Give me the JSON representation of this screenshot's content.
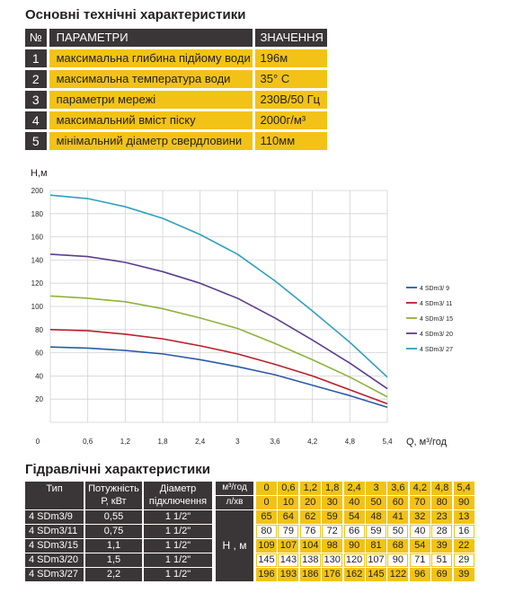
{
  "specs": {
    "title": "Основні технічні характеристики",
    "header": {
      "num": "№",
      "param": "ПАРАМЕТРИ",
      "value": "ЗНАЧЕННЯ"
    },
    "rows": [
      {
        "num": "1",
        "param": "максимальна глибина підйому води",
        "value": "196м"
      },
      {
        "num": "2",
        "param": "максимальна температура води",
        "value": "35° С"
      },
      {
        "num": "3",
        "param": "параметри мережі",
        "value": "230В/50 Гц"
      },
      {
        "num": "4",
        "param": "максимальний вміст піску",
        "value": "2000г/м³"
      },
      {
        "num": "5",
        "param": "мінімальний діаметр свердловини",
        "value": "110мм"
      }
    ]
  },
  "chart_data": {
    "type": "line",
    "ylabel": "Н,м",
    "xlabel": "Q,  м³/год",
    "xlim": [
      0,
      5.4
    ],
    "ylim": [
      0,
      200
    ],
    "x_ticks": [
      "0",
      "0,6",
      "1,2",
      "1,8",
      "2,4",
      "3",
      "3,6",
      "4,2",
      "4,8",
      "5,4"
    ],
    "y_ticks": [
      "20",
      "40",
      "60",
      "80",
      "100",
      "120",
      "140",
      "160",
      "180",
      "200"
    ],
    "y_zero_label": "0",
    "grid": true,
    "legend": "right",
    "x": [
      0,
      0.6,
      1.2,
      1.8,
      2.4,
      3,
      3.6,
      4.2,
      4.8,
      5.4
    ],
    "series": [
      {
        "name": "4 SDm3/ 9",
        "color": "#2b5aa8",
        "values": [
          65,
          64,
          62,
          59,
          54,
          48,
          41,
          32,
          23,
          13
        ]
      },
      {
        "name": "4 SDm3/ 11",
        "color": "#b8202a",
        "values": [
          80,
          79,
          76,
          72,
          66,
          59,
          50,
          40,
          28,
          16
        ]
      },
      {
        "name": "4 SDm3/ 15",
        "color": "#8fb23b",
        "values": [
          109,
          107,
          104,
          98,
          90,
          81,
          68,
          54,
          39,
          22
        ]
      },
      {
        "name": "4 SDm3/ 20",
        "color": "#5c3d8e",
        "values": [
          145,
          143,
          138,
          130,
          120,
          107,
          90,
          71,
          51,
          29
        ]
      },
      {
        "name": "4 SDm3/ 27",
        "color": "#2fa0c0",
        "values": [
          196,
          193,
          186,
          176,
          162,
          145,
          122,
          96,
          69,
          39
        ]
      }
    ]
  },
  "hydraulic": {
    "title": "Гідравлічні характеристики",
    "col_type": "Тип",
    "col_power": "Потужність\nР, кВт",
    "col_diameter": "Діаметр\nпідключення",
    "unit_q": "м³/год",
    "unit_l": "л/хв",
    "unit_h": "Н , м",
    "q_values": [
      "0",
      "0,6",
      "1,2",
      "1,8",
      "2,4",
      "3",
      "3,6",
      "4,2",
      "4,8",
      "5,4"
    ],
    "l_values": [
      "0",
      "10",
      "20",
      "30",
      "40",
      "50",
      "60",
      "70",
      "80",
      "90"
    ],
    "rows": [
      {
        "type": "4 SDm3/9",
        "power": "0,55",
        "diameter": "1 1/2\"",
        "h": [
          "65",
          "64",
          "62",
          "59",
          "54",
          "48",
          "41",
          "32",
          "23",
          "13"
        ]
      },
      {
        "type": "4 SDm3/11",
        "power": "0,75",
        "diameter": "1 1/2\"",
        "h": [
          "80",
          "79",
          "76",
          "72",
          "66",
          "59",
          "50",
          "40",
          "28",
          "16"
        ]
      },
      {
        "type": "4 SDm3/15",
        "power": "1,1",
        "diameter": "1 1/2\"",
        "h": [
          "109",
          "107",
          "104",
          "98",
          "90",
          "81",
          "68",
          "54",
          "39",
          "22"
        ]
      },
      {
        "type": "4 SDm3/20",
        "power": "1,5",
        "diameter": "1 1/2\"",
        "h": [
          "145",
          "143",
          "138",
          "130",
          "120",
          "107",
          "90",
          "71",
          "51",
          "29"
        ]
      },
      {
        "type": "4 SDm3/27",
        "power": "2,2",
        "diameter": "1 1/2\"",
        "h": [
          "196",
          "193",
          "186",
          "176",
          "162",
          "145",
          "122",
          "96",
          "69",
          "39"
        ]
      }
    ]
  }
}
